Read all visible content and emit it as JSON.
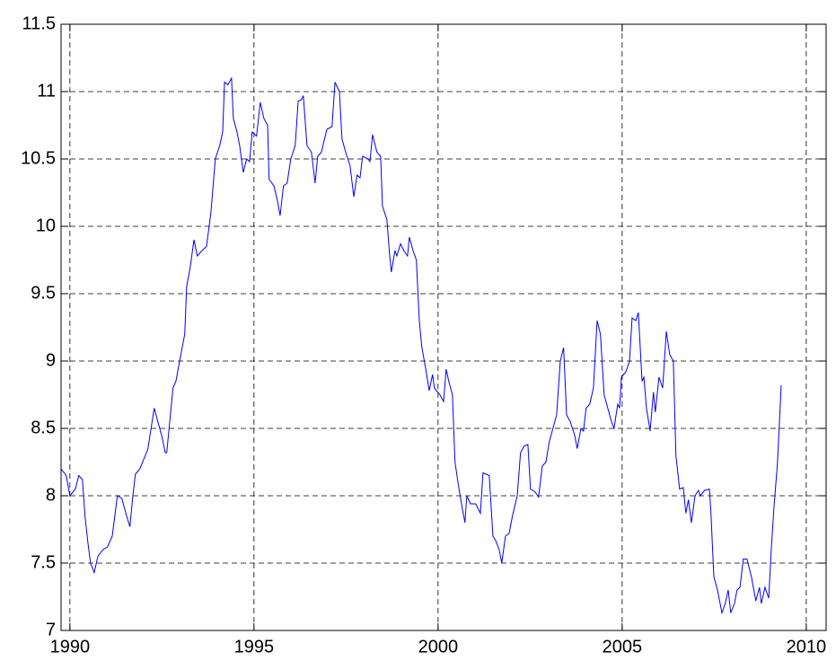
{
  "chart_data": {
    "type": "line",
    "x": [
      1989.76,
      1989.9,
      1990.0,
      1990.15,
      1990.24,
      1990.34,
      1990.41,
      1990.49,
      1990.56,
      1990.66,
      1990.76,
      1990.9,
      1991.02,
      1991.15,
      1991.22,
      1991.29,
      1991.41,
      1991.54,
      1991.63,
      1991.71,
      1991.78,
      1991.9,
      1992.05,
      1992.12,
      1992.29,
      1992.39,
      1992.49,
      1992.59,
      1992.63,
      1992.73,
      1992.8,
      1992.88,
      1992.98,
      1993.12,
      1993.17,
      1993.27,
      1993.37,
      1993.46,
      1993.59,
      1993.71,
      1993.83,
      1993.95,
      1994.07,
      1994.15,
      1994.2,
      1994.29,
      1994.39,
      1994.44,
      1994.54,
      1994.61,
      1994.71,
      1994.8,
      1994.88,
      1994.95,
      1995.07,
      1995.17,
      1995.27,
      1995.37,
      1995.41,
      1995.54,
      1995.63,
      1995.71,
      1995.8,
      1995.9,
      1996.0,
      1996.12,
      1996.2,
      1996.29,
      1996.34,
      1996.44,
      1996.56,
      1996.66,
      1996.73,
      1996.83,
      1996.98,
      1997.12,
      1997.2,
      1997.32,
      1997.39,
      1997.49,
      1997.61,
      1997.71,
      1997.8,
      1997.88,
      1997.95,
      1998.1,
      1998.15,
      1998.22,
      1998.34,
      1998.44,
      1998.49,
      1998.61,
      1998.68,
      1998.73,
      1998.83,
      1998.88,
      1998.98,
      1999.07,
      1999.17,
      1999.22,
      1999.32,
      1999.41,
      1999.49,
      1999.56,
      1999.66,
      1999.76,
      1999.85,
      1999.9,
      2000.05,
      2000.15,
      2000.22,
      2000.29,
      2000.39,
      2000.46,
      2000.54,
      2000.63,
      2000.73,
      2000.78,
      2000.88,
      2001.02,
      2001.15,
      2001.22,
      2001.39,
      2001.49,
      2001.56,
      2001.66,
      2001.73,
      2001.83,
      2001.93,
      2002.02,
      2002.15,
      2002.24,
      2002.34,
      2002.44,
      2002.51,
      2002.63,
      2002.73,
      2002.83,
      2002.93,
      2003.02,
      2003.22,
      2003.32,
      2003.41,
      2003.49,
      2003.59,
      2003.71,
      2003.78,
      2003.88,
      2003.95,
      2004.02,
      2004.12,
      2004.22,
      2004.32,
      2004.41,
      2004.51,
      2004.61,
      2004.71,
      2004.78,
      2004.88,
      2004.93,
      2004.98,
      2005.1,
      2005.2,
      2005.27,
      2005.37,
      2005.44,
      2005.54,
      2005.59,
      2005.66,
      2005.76,
      2005.85,
      2005.9,
      2006.0,
      2006.1,
      2006.2,
      2006.29,
      2006.39,
      2006.46,
      2006.56,
      2006.66,
      2006.73,
      2006.8,
      2006.88,
      2006.98,
      2007.07,
      2007.12,
      2007.24,
      2007.37,
      2007.41,
      2007.49,
      2007.59,
      2007.71,
      2007.8,
      2007.88,
      2007.95,
      2008.05,
      2008.12,
      2008.2,
      2008.29,
      2008.39,
      2008.51,
      2008.63,
      2008.73,
      2008.78,
      2008.88,
      2008.98,
      2009.05,
      2009.12,
      2009.22,
      2009.32
    ],
    "values": [
      8.2,
      8.15,
      8.0,
      8.05,
      8.15,
      8.12,
      7.85,
      7.65,
      7.5,
      7.43,
      7.55,
      7.6,
      7.62,
      7.7,
      7.85,
      8.0,
      7.98,
      7.85,
      7.77,
      8.0,
      8.16,
      8.2,
      8.3,
      8.35,
      8.65,
      8.55,
      8.45,
      8.32,
      8.32,
      8.6,
      8.8,
      8.85,
      9.0,
      9.2,
      9.55,
      9.7,
      9.9,
      9.78,
      9.82,
      9.85,
      10.1,
      10.5,
      10.6,
      10.7,
      11.07,
      11.05,
      11.1,
      10.8,
      10.7,
      10.6,
      10.4,
      10.5,
      10.48,
      10.7,
      10.67,
      10.92,
      10.8,
      10.75,
      10.35,
      10.3,
      10.2,
      10.08,
      10.3,
      10.32,
      10.5,
      10.6,
      10.93,
      10.94,
      10.97,
      10.6,
      10.55,
      10.32,
      10.52,
      10.55,
      10.72,
      10.74,
      11.07,
      11.0,
      10.65,
      10.55,
      10.45,
      10.22,
      10.38,
      10.36,
      10.52,
      10.5,
      10.48,
      10.68,
      10.55,
      10.52,
      10.15,
      10.05,
      9.8,
      9.66,
      9.82,
      9.78,
      9.87,
      9.82,
      9.78,
      9.92,
      9.82,
      9.75,
      9.3,
      9.1,
      8.95,
      8.78,
      8.9,
      8.8,
      8.75,
      8.7,
      8.94,
      8.85,
      8.75,
      8.25,
      8.1,
      7.95,
      7.8,
      8.0,
      7.94,
      7.94,
      7.87,
      8.17,
      8.15,
      7.7,
      7.67,
      7.6,
      7.5,
      7.7,
      7.72,
      7.85,
      8.0,
      8.32,
      8.37,
      8.38,
      8.05,
      8.03,
      7.99,
      8.22,
      8.25,
      8.4,
      8.6,
      9.0,
      9.1,
      8.6,
      8.55,
      8.45,
      8.35,
      8.5,
      8.48,
      8.65,
      8.68,
      8.8,
      9.3,
      9.2,
      8.75,
      8.65,
      8.55,
      8.5,
      8.68,
      8.65,
      8.88,
      8.92,
      9.0,
      9.32,
      9.3,
      9.36,
      8.85,
      8.88,
      8.65,
      8.48,
      8.77,
      8.62,
      8.88,
      8.8,
      9.22,
      9.05,
      9.0,
      8.3,
      8.05,
      8.06,
      7.87,
      7.97,
      7.8,
      8.0,
      8.04,
      8.0,
      8.04,
      8.05,
      7.88,
      7.4,
      7.3,
      7.13,
      7.2,
      7.3,
      7.13,
      7.2,
      7.3,
      7.32,
      7.53,
      7.53,
      7.4,
      7.22,
      7.32,
      7.2,
      7.32,
      7.24,
      7.6,
      7.9,
      8.25,
      8.82
    ],
    "color": "#0000ff",
    "xlim": [
      1989.76,
      2010.54
    ],
    "xticks": [
      1990,
      1995,
      2000,
      2005,
      2010
    ],
    "ylim": [
      7,
      11.5
    ],
    "yticks": [
      7,
      7.5,
      8,
      8.5,
      9,
      9.5,
      10,
      10.5,
      11,
      11.5
    ],
    "grid": true
  }
}
